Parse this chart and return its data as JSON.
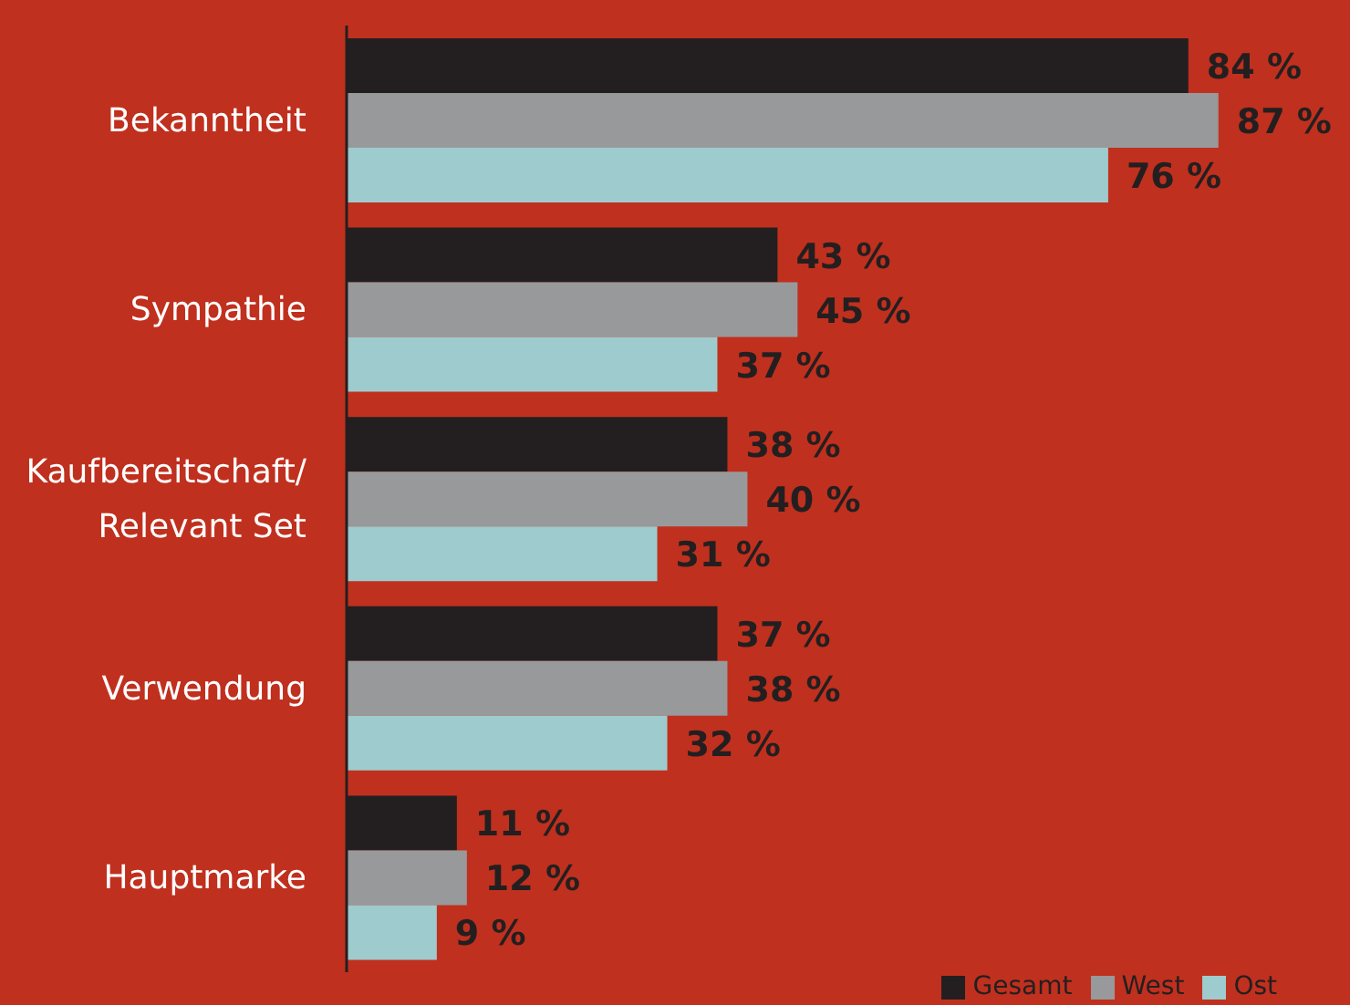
{
  "chart_data": {
    "type": "bar",
    "orientation": "horizontal",
    "categories": [
      "Bekanntheit",
      "Sympathie",
      "Kaufbereitschaft/ Relevant Set",
      "Verwendung",
      "Hauptmarke"
    ],
    "series": [
      {
        "name": "Gesamt",
        "color": "#231f20",
        "values": [
          84,
          43,
          38,
          37,
          11
        ],
        "value_labels": [
          "84 %",
          "43 %",
          "38 %",
          "37 %",
          "11 %"
        ]
      },
      {
        "name": "West",
        "color": "#98999b",
        "values": [
          87,
          45,
          40,
          38,
          12
        ],
        "value_labels": [
          "87 %",
          "45 %",
          "40 %",
          "38 %",
          "12 %"
        ]
      },
      {
        "name": "Ost",
        "color": "#9ecbcd",
        "values": [
          76,
          37,
          31,
          32,
          9
        ],
        "value_labels": [
          "76 %",
          "37 %",
          "31 %",
          "32 %",
          "9 %"
        ]
      }
    ],
    "legend": "bottom right",
    "grid": false
  }
}
